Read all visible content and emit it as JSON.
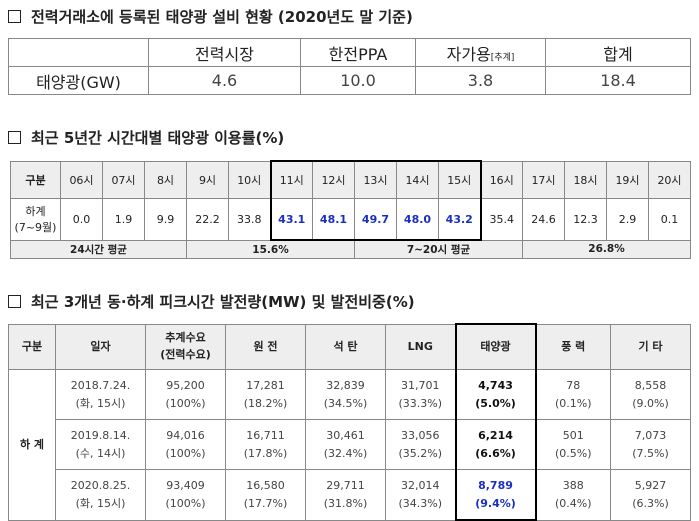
{
  "capacity": {
    "title": "전력거래소에 등록된 태양광 설비 현황 (2020년도 말 기준)",
    "header": [
      "전력시장",
      "한전PPA",
      {
        "text": "자가용",
        "note": "[추계]"
      },
      "합계"
    ],
    "row_label": "태양광(GW)",
    "values": [
      "4.6",
      "10.0",
      "3.8",
      "18.4"
    ]
  },
  "utilization": {
    "title": "최근 5년간 시간대별 태양광 이용률(%)",
    "header_label": "구분",
    "hours": [
      "06시",
      "07시",
      "8시",
      "9시",
      "10시",
      "11시",
      "12시",
      "13시",
      "14시",
      "15시",
      "16시",
      "17시",
      "18시",
      "19시",
      "20시"
    ],
    "row_label": [
      "하계",
      "(7~9월)"
    ],
    "values": [
      "0.0",
      "1.9",
      "9.9",
      "22.2",
      "33.8",
      "43.1",
      "48.1",
      "49.7",
      "48.0",
      "43.2",
      "35.4",
      "24.6",
      "12.3",
      "2.9",
      "0.1"
    ],
    "summary": [
      "24시간 평균",
      "15.6%",
      "7~20시 평균",
      "26.8%"
    ]
  },
  "peak": {
    "title": "최근 3개년 동·하계 피크시간 발전량(MW) 및 발전비중(%)",
    "headers": [
      [
        "구분"
      ],
      [
        "일자"
      ],
      [
        "추계수요",
        "(전력수요)"
      ],
      [
        "원 전"
      ],
      [
        "석 탄"
      ],
      [
        "LNG"
      ],
      [
        "태양광"
      ],
      [
        "풍 력"
      ],
      [
        "기 타"
      ]
    ],
    "group_label": "하 계",
    "rows": [
      [
        [
          "2018.7.24.",
          "(화, 15시)"
        ],
        [
          "95,200",
          "(100%)"
        ],
        [
          "17,281",
          "(18.2%)"
        ],
        [
          "32,839",
          "(34.5%)"
        ],
        [
          "31,701",
          "(33.3%)"
        ],
        [
          "4,743",
          "(5.0%)"
        ],
        [
          "78",
          "(0.1%)"
        ],
        [
          "8,558",
          "(9.0%)"
        ]
      ],
      [
        [
          "2019.8.14.",
          "(수, 14시)"
        ],
        [
          "94,016",
          "(100%)"
        ],
        [
          "16,711",
          "(17.8%)"
        ],
        [
          "30,461",
          "(32.4%)"
        ],
        [
          "33,056",
          "(35.2%)"
        ],
        [
          "6,214",
          "(6.6%)"
        ],
        [
          "501",
          "(0.5%)"
        ],
        [
          "7,073",
          "(7.5%)"
        ]
      ],
      [
        [
          "2020.8.25.",
          "(화, 15시)"
        ],
        [
          "93,409",
          "(100%)"
        ],
        [
          "16,580",
          "(17.7%)"
        ],
        [
          "29,711",
          "(31.8%)"
        ],
        [
          "32,014",
          "(34.3%)"
        ],
        [
          "8,789",
          "(9.4%)"
        ],
        [
          "388",
          "(0.4%)"
        ],
        [
          "5,927",
          "(6.3%)"
        ]
      ]
    ]
  }
}
